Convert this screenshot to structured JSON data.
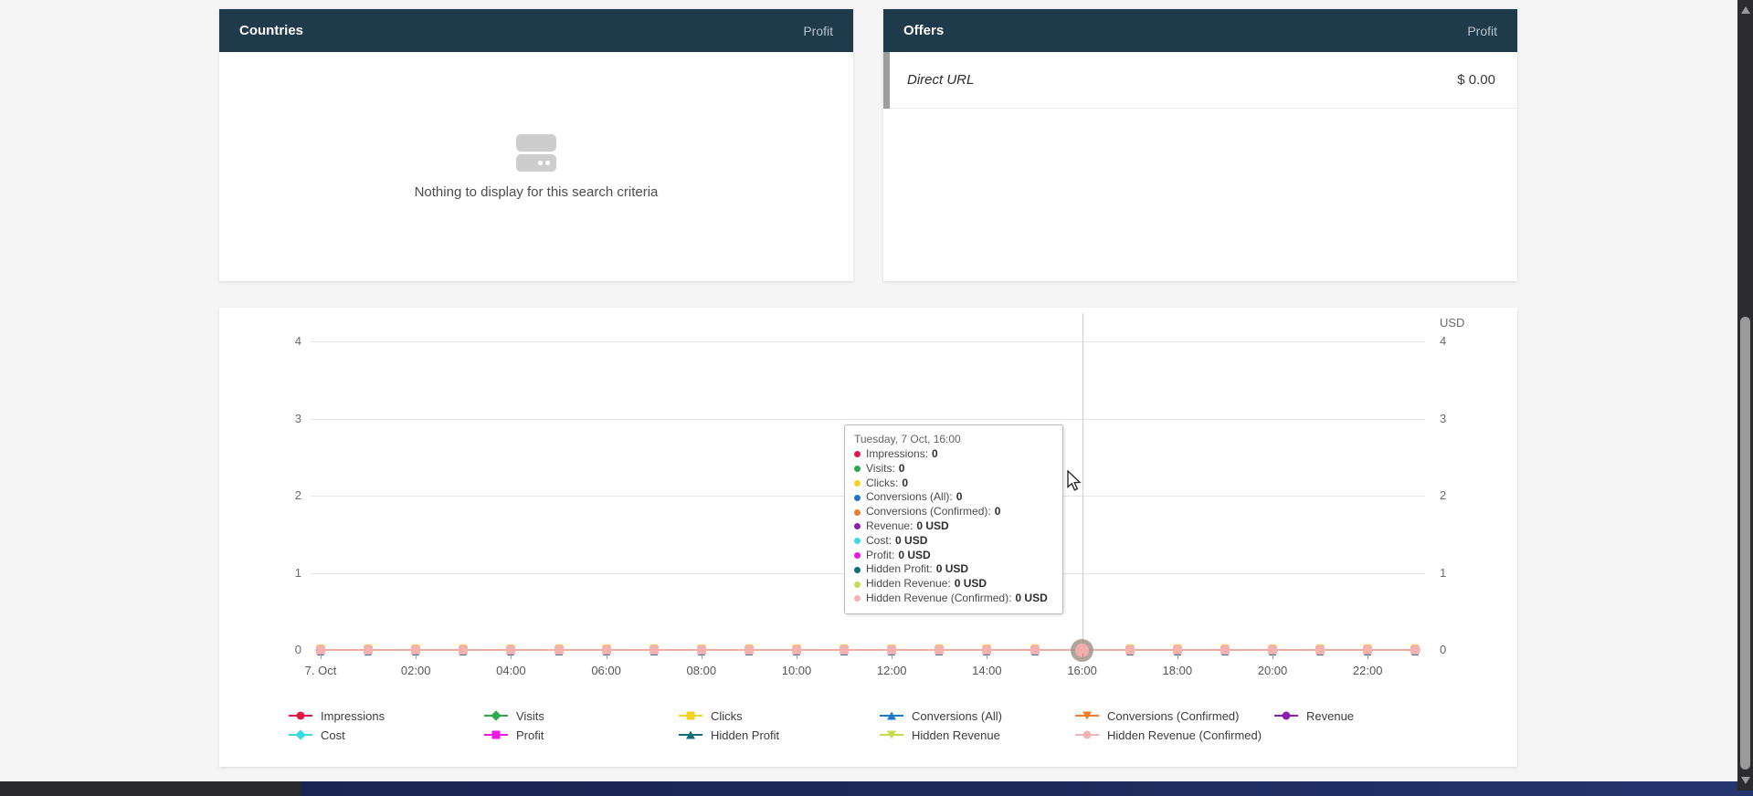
{
  "panels": {
    "countries": {
      "title": "Countries",
      "metric_header": "Profit",
      "empty_text": "Nothing to display for this search criteria"
    },
    "offers": {
      "title": "Offers",
      "metric_header": "Profit",
      "rows": [
        {
          "name": "Direct URL",
          "value": "$ 0.00"
        }
      ]
    }
  },
  "chart_data": {
    "type": "line",
    "title": "",
    "unit_label": "USD",
    "xlabel": "",
    "ylabel": "",
    "ylim": [
      0,
      4
    ],
    "yticks": [
      0,
      1,
      2,
      3,
      4
    ],
    "grid": true,
    "legend_position": "bottom",
    "x": [
      "00:00",
      "01:00",
      "02:00",
      "03:00",
      "04:00",
      "05:00",
      "06:00",
      "07:00",
      "08:00",
      "09:00",
      "10:00",
      "11:00",
      "12:00",
      "13:00",
      "14:00",
      "15:00",
      "16:00",
      "17:00",
      "18:00",
      "19:00",
      "20:00",
      "21:00",
      "22:00",
      "23:00"
    ],
    "x_axis_labels": [
      "7. Oct",
      "02:00",
      "04:00",
      "06:00",
      "08:00",
      "10:00",
      "12:00",
      "14:00",
      "16:00",
      "18:00",
      "20:00",
      "22:00"
    ],
    "series": [
      {
        "name": "Impressions",
        "color": "#e5164a",
        "marker": "circle",
        "values": [
          0,
          0,
          0,
          0,
          0,
          0,
          0,
          0,
          0,
          0,
          0,
          0,
          0,
          0,
          0,
          0,
          0,
          0,
          0,
          0,
          0,
          0,
          0,
          0
        ]
      },
      {
        "name": "Visits",
        "color": "#2aa84a",
        "marker": "diamond",
        "values": [
          0,
          0,
          0,
          0,
          0,
          0,
          0,
          0,
          0,
          0,
          0,
          0,
          0,
          0,
          0,
          0,
          0,
          0,
          0,
          0,
          0,
          0,
          0,
          0
        ]
      },
      {
        "name": "Clicks",
        "color": "#f5d220",
        "marker": "square",
        "values": [
          0,
          0,
          0,
          0,
          0,
          0,
          0,
          0,
          0,
          0,
          0,
          0,
          0,
          0,
          0,
          0,
          0,
          0,
          0,
          0,
          0,
          0,
          0,
          0
        ]
      },
      {
        "name": "Conversions (All)",
        "color": "#1e78c8",
        "marker": "triangle-up",
        "values": [
          0,
          0,
          0,
          0,
          0,
          0,
          0,
          0,
          0,
          0,
          0,
          0,
          0,
          0,
          0,
          0,
          0,
          0,
          0,
          0,
          0,
          0,
          0,
          0
        ]
      },
      {
        "name": "Conversions (Confirmed)",
        "color": "#f07d28",
        "marker": "triangle-down",
        "values": [
          0,
          0,
          0,
          0,
          0,
          0,
          0,
          0,
          0,
          0,
          0,
          0,
          0,
          0,
          0,
          0,
          0,
          0,
          0,
          0,
          0,
          0,
          0,
          0
        ]
      },
      {
        "name": "Revenue",
        "color": "#8e1fad",
        "marker": "circle",
        "unit": "USD",
        "values": [
          0,
          0,
          0,
          0,
          0,
          0,
          0,
          0,
          0,
          0,
          0,
          0,
          0,
          0,
          0,
          0,
          0,
          0,
          0,
          0,
          0,
          0,
          0,
          0
        ]
      },
      {
        "name": "Cost",
        "color": "#38dbe0",
        "marker": "diamond",
        "unit": "USD",
        "values": [
          0,
          0,
          0,
          0,
          0,
          0,
          0,
          0,
          0,
          0,
          0,
          0,
          0,
          0,
          0,
          0,
          0,
          0,
          0,
          0,
          0,
          0,
          0,
          0
        ]
      },
      {
        "name": "Profit",
        "color": "#ee18e4",
        "marker": "square",
        "unit": "USD",
        "values": [
          0,
          0,
          0,
          0,
          0,
          0,
          0,
          0,
          0,
          0,
          0,
          0,
          0,
          0,
          0,
          0,
          0,
          0,
          0,
          0,
          0,
          0,
          0,
          0
        ]
      },
      {
        "name": "Hidden Profit",
        "color": "#0f6f7c",
        "marker": "triangle-up",
        "unit": "USD",
        "values": [
          0,
          0,
          0,
          0,
          0,
          0,
          0,
          0,
          0,
          0,
          0,
          0,
          0,
          0,
          0,
          0,
          0,
          0,
          0,
          0,
          0,
          0,
          0,
          0
        ]
      },
      {
        "name": "Hidden Revenue",
        "color": "#c3dc4e",
        "marker": "triangle-down",
        "unit": "USD",
        "values": [
          0,
          0,
          0,
          0,
          0,
          0,
          0,
          0,
          0,
          0,
          0,
          0,
          0,
          0,
          0,
          0,
          0,
          0,
          0,
          0,
          0,
          0,
          0,
          0
        ]
      },
      {
        "name": "Hidden Revenue (Confirmed)",
        "color": "#f2b3b1",
        "marker": "circle",
        "unit": "USD",
        "values": [
          0,
          0,
          0,
          0,
          0,
          0,
          0,
          0,
          0,
          0,
          0,
          0,
          0,
          0,
          0,
          0,
          0,
          0,
          0,
          0,
          0,
          0,
          0,
          0
        ]
      }
    ],
    "tooltip": {
      "title": "Tuesday, 7 Oct, 16:00",
      "x_index": 16,
      "items": [
        {
          "label": "Impressions",
          "value": "0"
        },
        {
          "label": "Visits",
          "value": "0"
        },
        {
          "label": "Clicks",
          "value": "0"
        },
        {
          "label": "Conversions (All)",
          "value": "0"
        },
        {
          "label": "Conversions (Confirmed)",
          "value": "0"
        },
        {
          "label": "Revenue",
          "value": "0 USD"
        },
        {
          "label": "Cost",
          "value": "0 USD"
        },
        {
          "label": "Profit",
          "value": "0 USD"
        },
        {
          "label": "Hidden Profit",
          "value": "0 USD"
        },
        {
          "label": "Hidden Revenue",
          "value": "0 USD"
        },
        {
          "label": "Hidden Revenue (Confirmed)",
          "value": "0 USD"
        }
      ]
    }
  }
}
